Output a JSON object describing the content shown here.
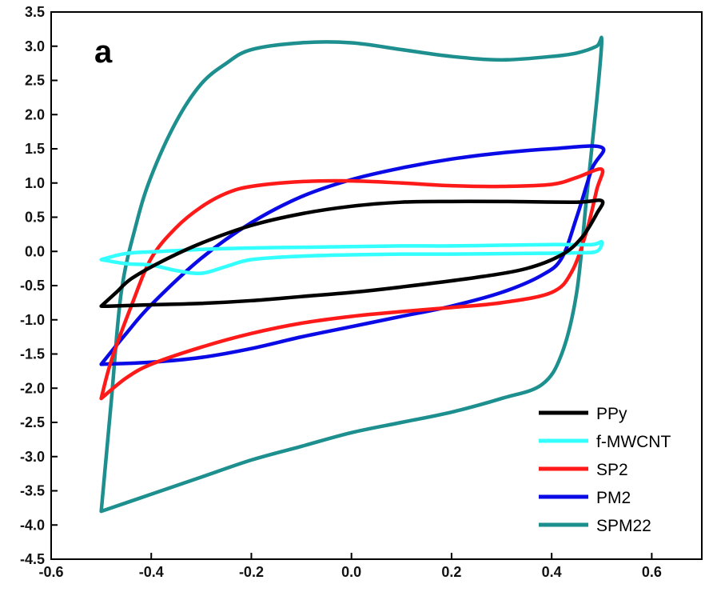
{
  "chart_data": {
    "type": "line",
    "panel_label": "a",
    "xlabel": "",
    "ylabel": "",
    "xlim": [
      -0.6,
      0.7
    ],
    "ylim": [
      -4.5,
      3.5
    ],
    "x_ticks": [
      "-0.6",
      "-0.4",
      "-0.2",
      "0.0",
      "0.2",
      "0.4",
      "0.6"
    ],
    "y_ticks": [
      "3.5",
      "3.0",
      "2.5",
      "2.0",
      "1.5",
      "1.0",
      "0.5",
      "0.0",
      "-0.5",
      "-1.0",
      "-1.5",
      "-2.0",
      "-2.5",
      "-3.0",
      "-3.5",
      "-4.0",
      "-4.5"
    ],
    "grid": false,
    "legend_position": "bottom-right",
    "series": [
      {
        "name": "PPy",
        "color": "#000000",
        "x": [
          -0.5,
          -0.47,
          -0.44,
          -0.38,
          -0.3,
          -0.2,
          -0.1,
          0.0,
          0.1,
          0.2,
          0.3,
          0.45,
          0.5,
          0.49,
          0.46,
          0.42,
          0.35,
          0.25,
          0.1,
          0.0,
          -0.1,
          -0.2,
          -0.3,
          -0.4,
          -0.48,
          -0.5
        ],
        "y": [
          -0.8,
          -0.6,
          -0.4,
          -0.15,
          0.12,
          0.38,
          0.55,
          0.66,
          0.72,
          0.73,
          0.73,
          0.72,
          0.74,
          0.55,
          0.2,
          -0.05,
          -0.25,
          -0.38,
          -0.52,
          -0.6,
          -0.66,
          -0.72,
          -0.76,
          -0.78,
          -0.8,
          -0.8
        ]
      },
      {
        "name": "f-MWCNT",
        "color": "#33ffff",
        "x": [
          -0.5,
          -0.45,
          -0.38,
          -0.3,
          -0.2,
          -0.1,
          0.0,
          0.1,
          0.2,
          0.3,
          0.4,
          0.48,
          0.5,
          0.49,
          0.45,
          0.35,
          0.2,
          0.1,
          0.0,
          -0.1,
          -0.2,
          -0.25,
          -0.3,
          -0.35,
          -0.4,
          -0.45,
          -0.5
        ],
        "y": [
          -0.12,
          -0.03,
          0.0,
          0.03,
          0.05,
          0.06,
          0.07,
          0.08,
          0.08,
          0.09,
          0.1,
          0.1,
          0.14,
          0.0,
          -0.02,
          -0.03,
          -0.04,
          -0.04,
          -0.05,
          -0.07,
          -0.12,
          -0.22,
          -0.32,
          -0.28,
          -0.2,
          -0.18,
          -0.12
        ]
      },
      {
        "name": "SP2",
        "color": "#ff1a1a",
        "x": [
          -0.5,
          -0.48,
          -0.44,
          -0.4,
          -0.35,
          -0.3,
          -0.25,
          -0.2,
          -0.1,
          0.0,
          0.1,
          0.2,
          0.3,
          0.4,
          0.45,
          0.5,
          0.49,
          0.47,
          0.44,
          0.4,
          0.3,
          0.2,
          0.1,
          0.0,
          -0.1,
          -0.2,
          -0.3,
          -0.4,
          -0.45,
          -0.5
        ],
        "y": [
          -2.15,
          -1.6,
          -0.8,
          -0.1,
          0.35,
          0.65,
          0.85,
          0.95,
          1.02,
          1.03,
          1.0,
          0.96,
          0.95,
          0.98,
          1.08,
          1.2,
          0.9,
          0.3,
          -0.3,
          -0.6,
          -0.75,
          -0.82,
          -0.88,
          -0.95,
          -1.05,
          -1.2,
          -1.4,
          -1.65,
          -1.85,
          -2.15
        ]
      },
      {
        "name": "PM2",
        "color": "#0a0ae6",
        "x": [
          -0.5,
          -0.45,
          -0.4,
          -0.3,
          -0.2,
          -0.1,
          0.0,
          0.1,
          0.2,
          0.3,
          0.4,
          0.5,
          0.48,
          0.45,
          0.42,
          0.38,
          0.3,
          0.2,
          0.1,
          0.0,
          -0.1,
          -0.2,
          -0.3,
          -0.4,
          -0.5
        ],
        "y": [
          -1.65,
          -1.2,
          -0.78,
          -0.1,
          0.42,
          0.8,
          1.05,
          1.22,
          1.35,
          1.44,
          1.5,
          1.52,
          1.2,
          0.5,
          -0.1,
          -0.35,
          -0.6,
          -0.8,
          -0.95,
          -1.1,
          -1.25,
          -1.42,
          -1.55,
          -1.62,
          -1.65
        ]
      },
      {
        "name": "SPM22",
        "color": "#1e8f8f",
        "x": [
          -0.5,
          -0.48,
          -0.46,
          -0.43,
          -0.4,
          -0.35,
          -0.3,
          -0.25,
          -0.2,
          -0.1,
          0.0,
          0.1,
          0.2,
          0.3,
          0.4,
          0.45,
          0.49,
          0.5,
          0.49,
          0.47,
          0.45,
          0.42,
          0.38,
          0.3,
          0.2,
          0.1,
          0.0,
          -0.1,
          -0.2,
          -0.3,
          -0.4,
          -0.5
        ],
        "y": [
          -3.8,
          -2.2,
          -0.6,
          0.4,
          1.1,
          1.9,
          2.45,
          2.75,
          2.95,
          3.05,
          3.05,
          2.95,
          2.85,
          2.8,
          2.85,
          2.9,
          3.0,
          3.08,
          2.2,
          0.8,
          -0.6,
          -1.5,
          -1.95,
          -2.15,
          -2.35,
          -2.5,
          -2.65,
          -2.85,
          -3.05,
          -3.3,
          -3.55,
          -3.8
        ]
      }
    ]
  }
}
